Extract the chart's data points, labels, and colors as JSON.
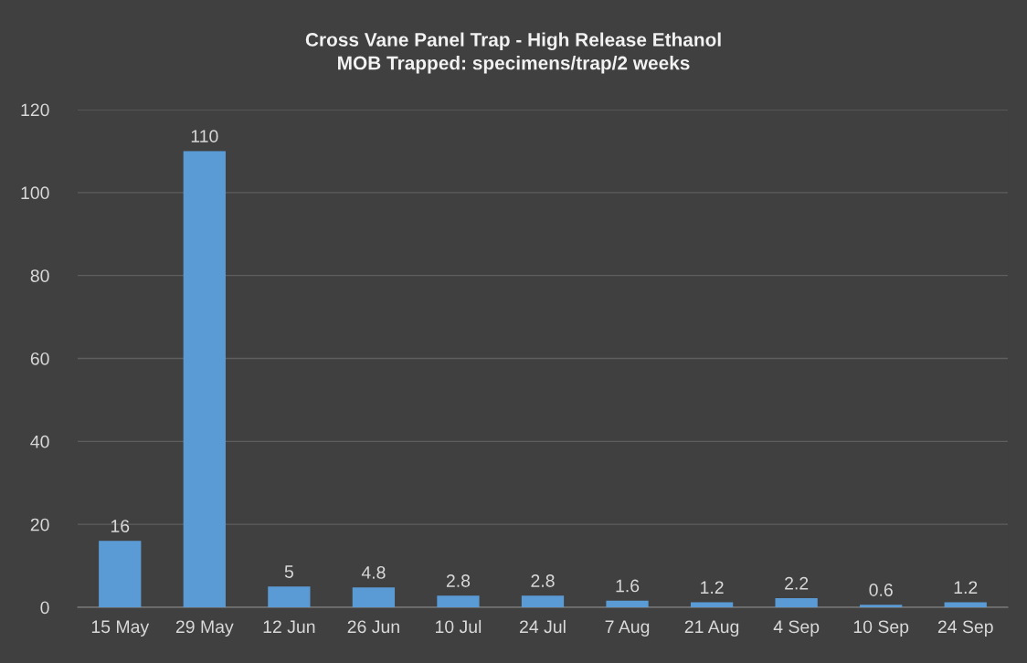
{
  "chart_data": {
    "type": "bar",
    "title": "Cross Vane Panel Trap - High Release Ethanol\nMOB Trapped: specimens/trap/2 weeks",
    "categories": [
      "15 May",
      "29 May",
      "12 Jun",
      "26 Jun",
      "10 Jul",
      "24 Jul",
      "7 Aug",
      "21 Aug",
      "4 Sep",
      "10 Sep",
      "24 Sep"
    ],
    "values": [
      16,
      110,
      5,
      4.8,
      2.8,
      2.8,
      1.6,
      1.2,
      2.2,
      0.6,
      1.2
    ],
    "color": "#5b9bd5",
    "ylim": [
      0,
      120
    ],
    "yticks": [
      0,
      20,
      40,
      60,
      80,
      100,
      120
    ],
    "grid": "y",
    "data_labels": true
  }
}
